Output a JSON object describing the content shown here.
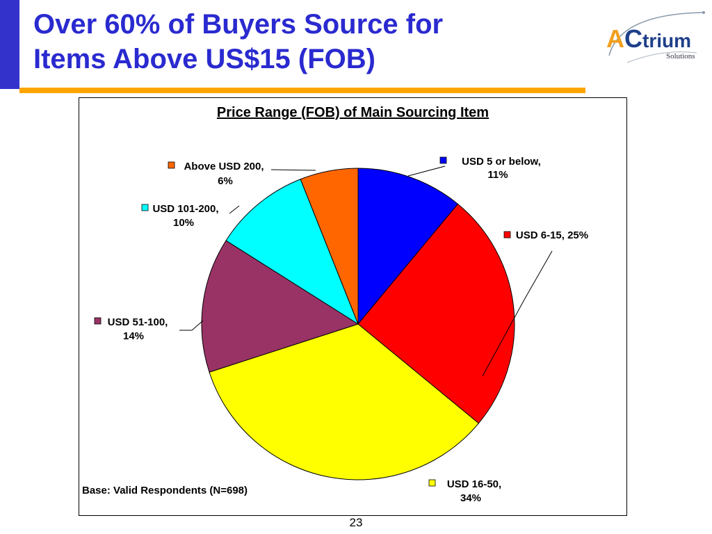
{
  "slide": {
    "title_line1": "Over 60% of Buyers Source for",
    "title_line2": "Items Above US$15 (FOB)",
    "page_number": "23",
    "base_note": "Base: Valid Respondents (N=698)"
  },
  "logo": {
    "text_a": "A",
    "text_c": "C",
    "text_trium": "trium",
    "text_solutions": "Solutions"
  },
  "colors": {
    "title": "#2a2ad0",
    "left_bar": "#3333cc",
    "accent_rule": "#ffa500"
  },
  "chart_data": {
    "type": "pie",
    "title": "Price Range (FOB) of Main Sourcing Item",
    "slices": [
      {
        "label": "USD 5 or below,",
        "pct_text": "11%",
        "value": 11,
        "color": "#0000ff"
      },
      {
        "label": "USD 6-15, 25%",
        "pct_text": "",
        "value": 25,
        "color": "#ff0000"
      },
      {
        "label": "USD 16-50,",
        "pct_text": "34%",
        "value": 34,
        "color": "#ffff00"
      },
      {
        "label": "USD 51-100,",
        "pct_text": "14%",
        "value": 14,
        "color": "#993366"
      },
      {
        "label": "USD 101-200,",
        "pct_text": "10%",
        "value": 10,
        "color": "#00ffff"
      },
      {
        "label": "Above USD 200,",
        "pct_text": "6%",
        "value": 6,
        "color": "#ff6600"
      }
    ]
  }
}
